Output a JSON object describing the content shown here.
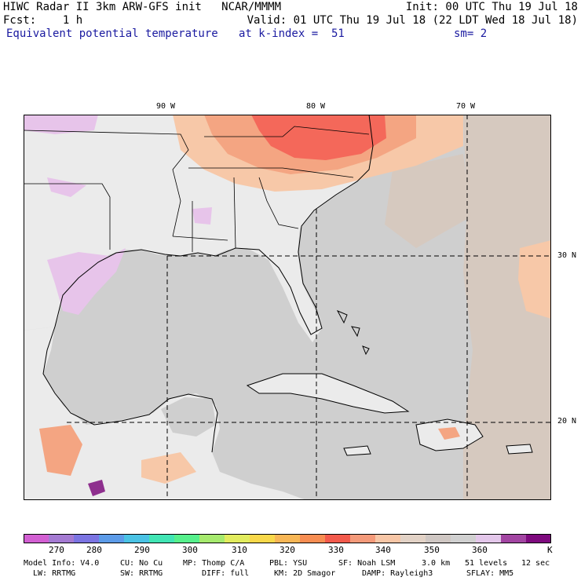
{
  "header": {
    "line1_left": "HIWC Radar II 3km ARW-GFS init   NCAR/MMMM",
    "line1_right": "Init: 00 UTC Thu 19 Jul 18",
    "line2_left": "Fcst:    1 h",
    "line2_right": "Valid: 01 UTC Thu 19 Jul 18 (22 LDT Wed 18 Jul 18)",
    "field_name": "Equivalent potential temperature",
    "k_index": "at k-index =  51",
    "smoothing": "sm= 2"
  },
  "map": {
    "lon_labels": [
      "90 W",
      "80 W",
      "70 W"
    ],
    "lat_labels": [
      "30 N",
      "20 N"
    ],
    "colors": {
      "ocean_gray": "#cfcfcf",
      "land_light": "#ebebeb",
      "tan": "#d6c9bf",
      "peach": "#f7c8a8",
      "salmon": "#f4a582",
      "red": "#f4685a",
      "lilac": "#e7c4ea",
      "purple": "#8e2f8e"
    }
  },
  "colorbar": {
    "unit": "K",
    "colors": [
      "#d25fd2",
      "#a47ad2",
      "#7b74e2",
      "#5c9be8",
      "#4ac2e4",
      "#41e5b4",
      "#56f08c",
      "#a6ea6e",
      "#e2ec5e",
      "#f8d84a",
      "#f7b655",
      "#f78d52",
      "#f35a4c",
      "#f49a7a",
      "#f7c6a6",
      "#e2d2c6",
      "#cfc7c3",
      "#d0d0d0",
      "#e3c7ea",
      "#a245a2",
      "#7e0a7e"
    ],
    "labels": [
      "270",
      "280",
      "290",
      "300",
      "310",
      "320",
      "330",
      "340",
      "350",
      "360"
    ]
  },
  "footer": {
    "line1": [
      "Model Info: V4.0",
      "CU: No Cu",
      "MP: Thomp C/A",
      "PBL: YSU",
      "SF: Noah LSM",
      "3.0 km",
      "51 levels",
      "12 sec"
    ],
    "line2": [
      "LW: RRTMG",
      "SW: RRTMG",
      "DIFF: full",
      "KM: 2D Smagor",
      "DAMP: Rayleigh3",
      "SFLAY: MM5"
    ]
  }
}
